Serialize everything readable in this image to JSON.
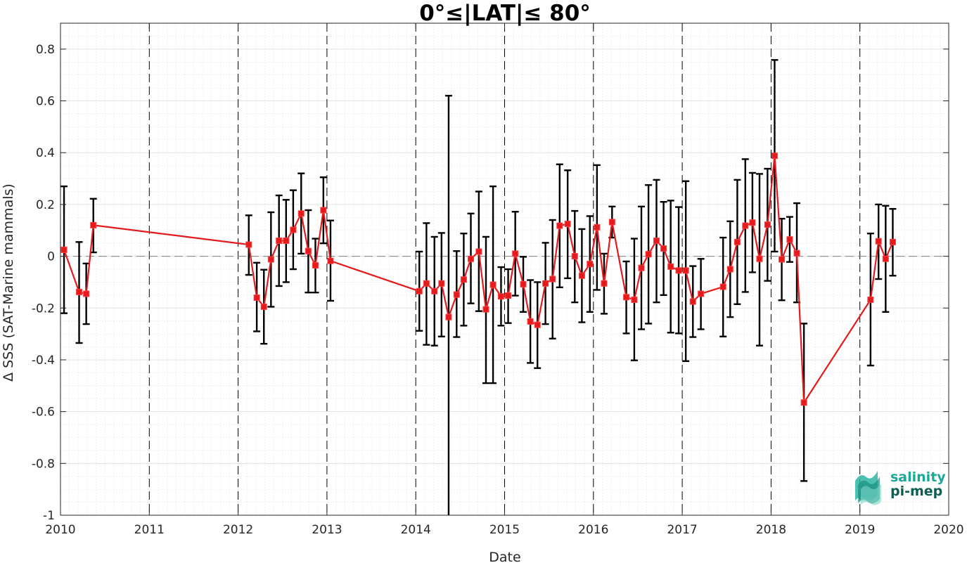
{
  "chart_data": {
    "type": "line",
    "title": "0°≤|LAT|≤ 80°",
    "xlabel": "Date",
    "ylabel": "Δ SSS (SAT-Marine mammals)",
    "xlim": [
      2010,
      2020
    ],
    "ylim": [
      -1,
      0.9
    ],
    "xticks": [
      "2010",
      "2011",
      "2012",
      "2013",
      "2014",
      "2015",
      "2016",
      "2017",
      "2018",
      "2019",
      "2020"
    ],
    "yticks": [
      "0.8",
      "0.6",
      "0.4",
      "0.2",
      "0",
      "-0.2",
      "-0.4",
      "-0.6",
      "-0.8",
      "-1"
    ],
    "grid": true,
    "series": [
      {
        "color": "#e41a1c",
        "errorbar_color": "#000000",
        "points": [
          {
            "x": 2010.04,
            "y": 0.025,
            "lo": -0.22,
            "hi": 0.27
          },
          {
            "x": 2010.21,
            "y": -0.138,
            "lo": -0.335,
            "hi": 0.055
          },
          {
            "x": 2010.29,
            "y": -0.145,
            "lo": -0.262,
            "hi": -0.028
          },
          {
            "x": 2010.37,
            "y": 0.12,
            "lo": 0.015,
            "hi": 0.222
          },
          {
            "x": 2012.12,
            "y": 0.045,
            "lo": -0.072,
            "hi": 0.158
          },
          {
            "x": 2012.21,
            "y": -0.16,
            "lo": -0.29,
            "hi": -0.025
          },
          {
            "x": 2012.29,
            "y": -0.195,
            "lo": -0.338,
            "hi": -0.052
          },
          {
            "x": 2012.37,
            "y": -0.012,
            "lo": -0.195,
            "hi": 0.17
          },
          {
            "x": 2012.46,
            "y": 0.06,
            "lo": -0.115,
            "hi": 0.235
          },
          {
            "x": 2012.54,
            "y": 0.06,
            "lo": -0.1,
            "hi": 0.218
          },
          {
            "x": 2012.62,
            "y": 0.102,
            "lo": -0.05,
            "hi": 0.255
          },
          {
            "x": 2012.71,
            "y": 0.165,
            "lo": 0.01,
            "hi": 0.32
          },
          {
            "x": 2012.79,
            "y": 0.02,
            "lo": -0.14,
            "hi": 0.178
          },
          {
            "x": 2012.87,
            "y": -0.035,
            "lo": -0.14,
            "hi": 0.068
          },
          {
            "x": 2012.96,
            "y": 0.178,
            "lo": 0.05,
            "hi": 0.305
          },
          {
            "x": 2013.04,
            "y": -0.018,
            "lo": -0.172,
            "hi": 0.138
          },
          {
            "x": 2014.04,
            "y": -0.135,
            "lo": -0.288,
            "hi": 0.018
          },
          {
            "x": 2014.12,
            "y": -0.105,
            "lo": -0.342,
            "hi": 0.128
          },
          {
            "x": 2014.21,
            "y": -0.135,
            "lo": -0.345,
            "hi": 0.075
          },
          {
            "x": 2014.29,
            "y": -0.105,
            "lo": -0.31,
            "hi": 0.09
          },
          {
            "x": 2014.37,
            "y": -0.235,
            "lo": -1.0,
            "hi": 0.62
          },
          {
            "x": 2014.46,
            "y": -0.148,
            "lo": -0.312,
            "hi": 0.02
          },
          {
            "x": 2014.54,
            "y": -0.09,
            "lo": -0.268,
            "hi": 0.088
          },
          {
            "x": 2014.62,
            "y": -0.01,
            "lo": -0.182,
            "hi": 0.165
          },
          {
            "x": 2014.71,
            "y": 0.018,
            "lo": -0.212,
            "hi": 0.25
          },
          {
            "x": 2014.79,
            "y": -0.205,
            "lo": -0.49,
            "hi": 0.075
          },
          {
            "x": 2014.87,
            "y": -0.11,
            "lo": -0.49,
            "hi": 0.27
          },
          {
            "x": 2014.96,
            "y": -0.155,
            "lo": -0.268,
            "hi": -0.042
          },
          {
            "x": 2015.04,
            "y": -0.152,
            "lo": -0.258,
            "hi": -0.05
          },
          {
            "x": 2015.12,
            "y": 0.01,
            "lo": -0.152,
            "hi": 0.172
          },
          {
            "x": 2015.21,
            "y": -0.108,
            "lo": -0.215,
            "hi": -0.002
          },
          {
            "x": 2015.29,
            "y": -0.252,
            "lo": -0.412,
            "hi": -0.092
          },
          {
            "x": 2015.37,
            "y": -0.265,
            "lo": -0.432,
            "hi": -0.1
          },
          {
            "x": 2015.46,
            "y": -0.105,
            "lo": -0.262,
            "hi": 0.052
          },
          {
            "x": 2015.54,
            "y": -0.088,
            "lo": -0.318,
            "hi": 0.14
          },
          {
            "x": 2015.62,
            "y": 0.118,
            "lo": -0.12,
            "hi": 0.355
          },
          {
            "x": 2015.71,
            "y": 0.125,
            "lo": -0.085,
            "hi": 0.332
          },
          {
            "x": 2015.79,
            "y": 0.0,
            "lo": -0.178,
            "hi": 0.175
          },
          {
            "x": 2015.87,
            "y": -0.075,
            "lo": -0.255,
            "hi": 0.105
          },
          {
            "x": 2015.96,
            "y": -0.03,
            "lo": -0.215,
            "hi": 0.155
          },
          {
            "x": 2016.04,
            "y": 0.112,
            "lo": -0.13,
            "hi": 0.352
          },
          {
            "x": 2016.12,
            "y": -0.105,
            "lo": -0.222,
            "hi": 0.01
          },
          {
            "x": 2016.21,
            "y": 0.132,
            "lo": 0.072,
            "hi": 0.192
          },
          {
            "x": 2016.37,
            "y": -0.158,
            "lo": -0.298,
            "hi": -0.02
          },
          {
            "x": 2016.46,
            "y": -0.168,
            "lo": -0.402,
            "hi": 0.068
          },
          {
            "x": 2016.54,
            "y": -0.045,
            "lo": -0.282,
            "hi": 0.192
          },
          {
            "x": 2016.62,
            "y": 0.008,
            "lo": -0.26,
            "hi": 0.275
          },
          {
            "x": 2016.71,
            "y": 0.06,
            "lo": -0.178,
            "hi": 0.295
          },
          {
            "x": 2016.79,
            "y": 0.03,
            "lo": -0.15,
            "hi": 0.21
          },
          {
            "x": 2016.87,
            "y": -0.04,
            "lo": -0.295,
            "hi": 0.215
          },
          {
            "x": 2016.96,
            "y": -0.055,
            "lo": -0.298,
            "hi": 0.19
          },
          {
            "x": 2017.04,
            "y": -0.055,
            "lo": -0.405,
            "hi": 0.29
          },
          {
            "x": 2017.12,
            "y": -0.175,
            "lo": -0.312,
            "hi": -0.038
          },
          {
            "x": 2017.21,
            "y": -0.145,
            "lo": -0.282,
            "hi": -0.01
          },
          {
            "x": 2017.46,
            "y": -0.118,
            "lo": -0.31,
            "hi": 0.072
          },
          {
            "x": 2017.54,
            "y": -0.05,
            "lo": -0.235,
            "hi": 0.135
          },
          {
            "x": 2017.62,
            "y": 0.055,
            "lo": -0.185,
            "hi": 0.295
          },
          {
            "x": 2017.71,
            "y": 0.118,
            "lo": -0.138,
            "hi": 0.375
          },
          {
            "x": 2017.79,
            "y": 0.13,
            "lo": -0.062,
            "hi": 0.322
          },
          {
            "x": 2017.87,
            "y": -0.01,
            "lo": -0.345,
            "hi": 0.318
          },
          {
            "x": 2017.96,
            "y": 0.122,
            "lo": -0.095,
            "hi": 0.338
          },
          {
            "x": 2018.04,
            "y": 0.388,
            "lo": 0.018,
            "hi": 0.758
          },
          {
            "x": 2018.12,
            "y": -0.012,
            "lo": -0.17,
            "hi": 0.145
          },
          {
            "x": 2018.21,
            "y": 0.065,
            "lo": -0.022,
            "hi": 0.152
          },
          {
            "x": 2018.29,
            "y": 0.012,
            "lo": -0.178,
            "hi": 0.205
          },
          {
            "x": 2018.37,
            "y": -0.565,
            "lo": -0.868,
            "hi": -0.26
          },
          {
            "x": 2019.12,
            "y": -0.168,
            "lo": -0.422,
            "hi": 0.088
          },
          {
            "x": 2019.21,
            "y": 0.058,
            "lo": -0.088,
            "hi": 0.2
          },
          {
            "x": 2019.29,
            "y": -0.01,
            "lo": -0.215,
            "hi": 0.195
          },
          {
            "x": 2019.37,
            "y": 0.055,
            "lo": -0.075,
            "hi": 0.183
          }
        ]
      }
    ]
  },
  "logo": {
    "line1": "salinity",
    "line2": "pi-mep",
    "color1": "#1aa89a",
    "color2": "#0e5d52"
  }
}
